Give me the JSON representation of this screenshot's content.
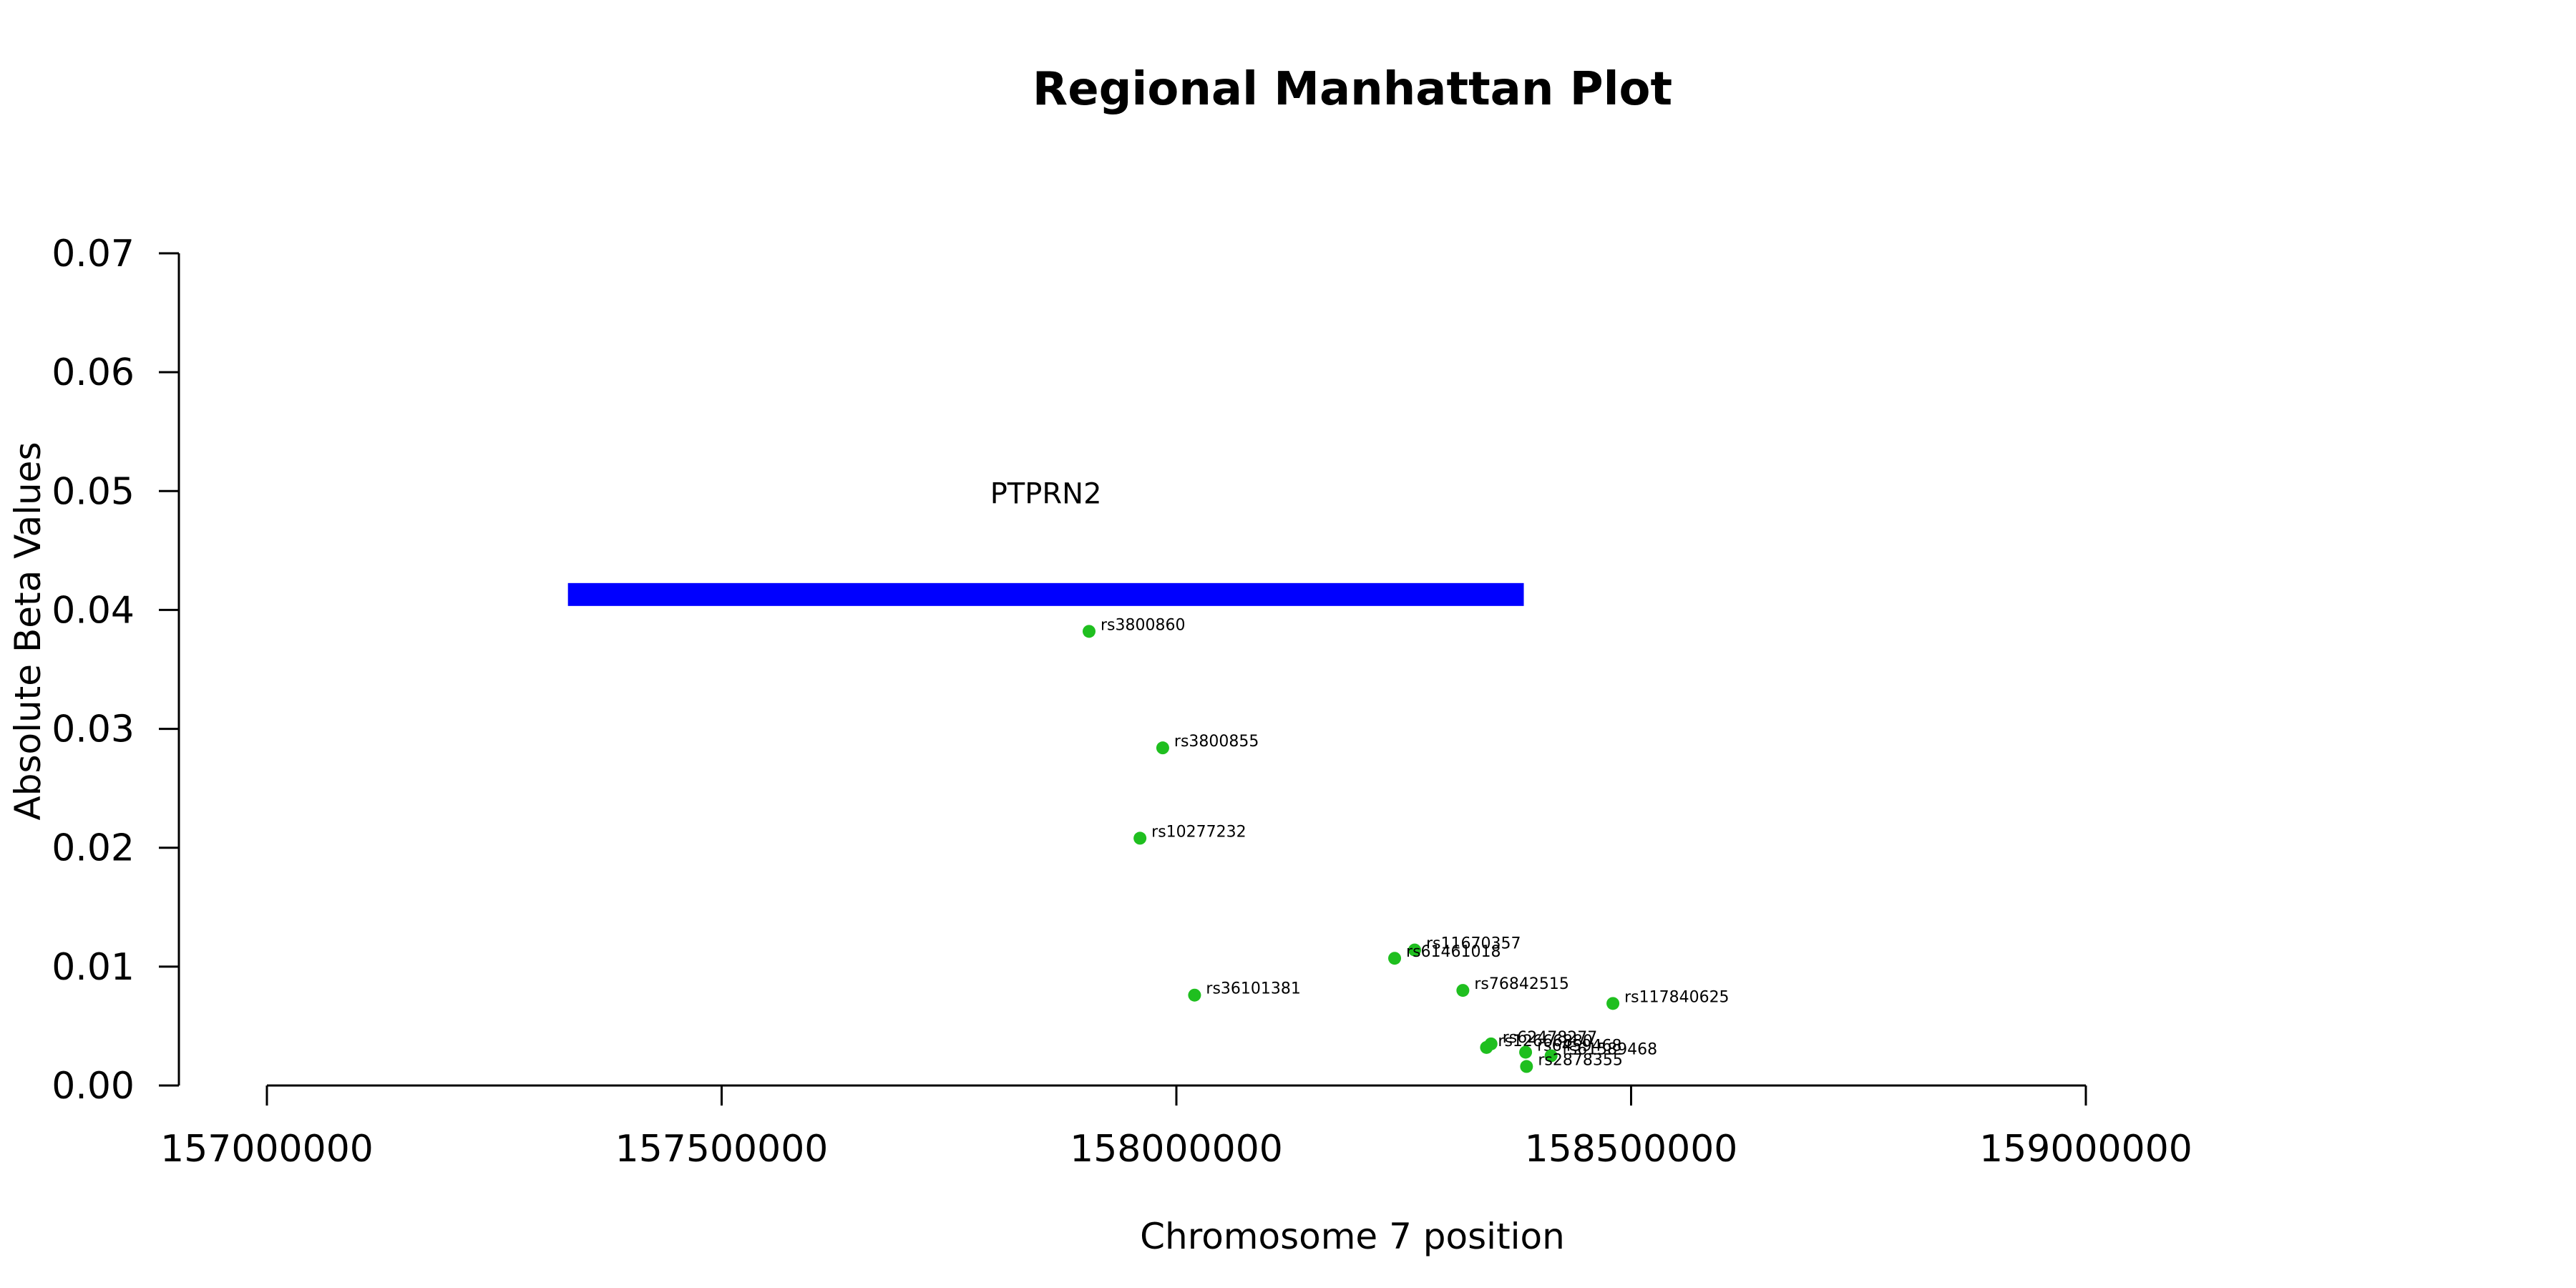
{
  "chart_data": {
    "type": "scatter",
    "title": "Regional Manhattan Plot",
    "xlabel": "Chromosome 7 position",
    "ylabel": "Absolute Beta Values",
    "xlim": [
      157000000,
      159000000
    ],
    "ylim": [
      0,
      0.07
    ],
    "x_ticks": [
      157000000,
      157500000,
      158000000,
      158500000,
      159000000
    ],
    "y_ticks": [
      0.0,
      0.01,
      0.02,
      0.03,
      0.04,
      0.05,
      0.06,
      0.07
    ],
    "x_tick_labels": [
      "157000000",
      "157500000",
      "158000000",
      "158500000",
      "159000000"
    ],
    "y_tick_labels": [
      "0.00",
      "0.01",
      "0.02",
      "0.03",
      "0.04",
      "0.05",
      "0.06",
      "0.07"
    ],
    "grid": false,
    "point_color": "#1fbf1f",
    "gene": {
      "name": "PTPRN2",
      "start": 157331000,
      "end": 158382000,
      "y": 0.0413,
      "label_y": 0.0498,
      "color": "#0000ff"
    },
    "points": [
      {
        "label": "rs3800860",
        "x": 157904000,
        "y": 0.0382
      },
      {
        "label": "rs3800855",
        "x": 157985000,
        "y": 0.0284
      },
      {
        "label": "rs10277232",
        "x": 157960000,
        "y": 0.0208
      },
      {
        "label": "rs36101381",
        "x": 158020000,
        "y": 0.0076
      },
      {
        "label": "rs11670357",
        "x": 158262000,
        "y": 0.0114
      },
      {
        "label": "rs61461018",
        "x": 158240000,
        "y": 0.0107
      },
      {
        "label": "rs76842515",
        "x": 158315000,
        "y": 0.008
      },
      {
        "label": "rs117840625",
        "x": 158480000,
        "y": 0.0069
      },
      {
        "label": "rs62478277",
        "x": 158346000,
        "y": 0.0035
      },
      {
        "label": "rs12666880",
        "x": 158341000,
        "y": 0.0032
      },
      {
        "label": "rs6459468",
        "x": 158384000,
        "y": 0.0028
      },
      {
        "label": "rs61589468",
        "x": 158412000,
        "y": 0.0025
      },
      {
        "label": "rs2878355",
        "x": 158385000,
        "y": 0.0016
      }
    ]
  }
}
